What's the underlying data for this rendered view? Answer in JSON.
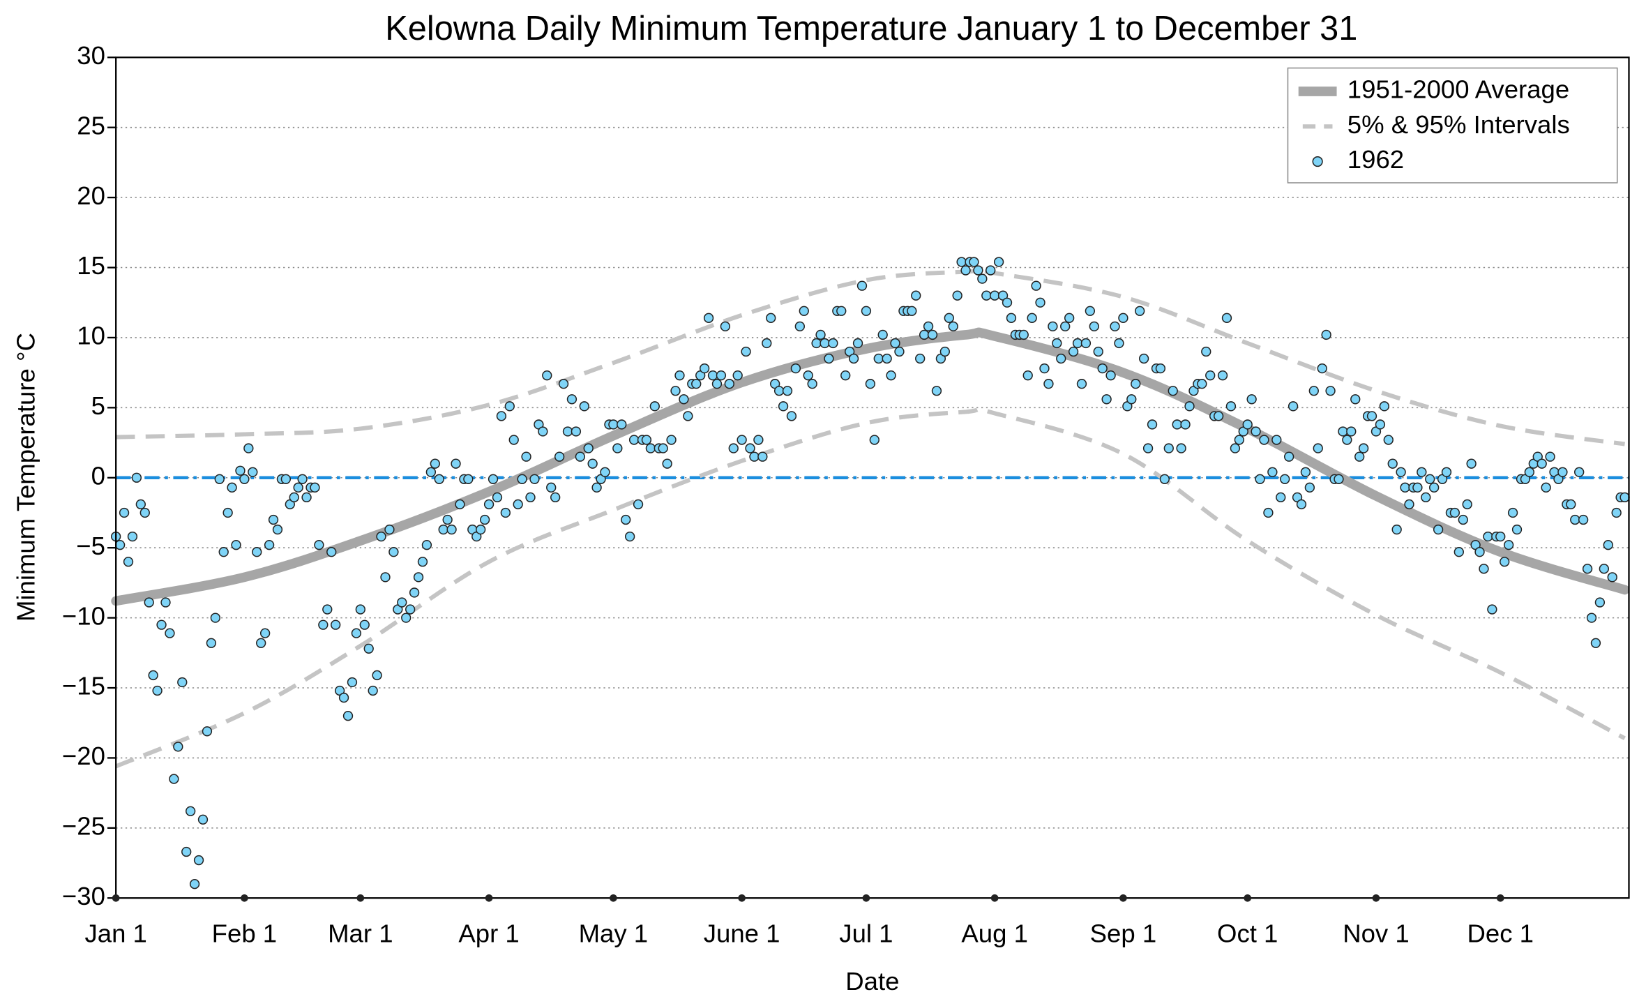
{
  "chart_data": {
    "type": "scatter",
    "title": "Kelowna Daily Minimum Temperature January 1 to December 31",
    "x_label": "Date",
    "y_label": "Minimum Temperature °C",
    "xlim": [
      0,
      365
    ],
    "ylim": [
      -30,
      30
    ],
    "xticks": [
      {
        "value": 0,
        "label": "Jan 1"
      },
      {
        "value": 31,
        "label": "Feb 1"
      },
      {
        "value": 59,
        "label": "Mar 1"
      },
      {
        "value": 90,
        "label": "Apr 1"
      },
      {
        "value": 120,
        "label": "May 1"
      },
      {
        "value": 151,
        "label": "June 1"
      },
      {
        "value": 181,
        "label": "Jul 1"
      },
      {
        "value": 212,
        "label": "Aug 1"
      },
      {
        "value": 243,
        "label": "Sep 1"
      },
      {
        "value": 273,
        "label": "Oct 1"
      },
      {
        "value": 304,
        "label": "Nov 1"
      },
      {
        "value": 334,
        "label": "Dec 1"
      }
    ],
    "yticks": [
      {
        "value": -30,
        "label": "−30"
      },
      {
        "value": -25,
        "label": "−25"
      },
      {
        "value": -20,
        "label": "−20"
      },
      {
        "value": -15,
        "label": "−15"
      },
      {
        "value": -10,
        "label": "−10"
      },
      {
        "value": -5,
        "label": "−5"
      },
      0,
      5,
      10,
      15,
      20,
      25,
      30
    ],
    "grid": true,
    "legend": "upper right",
    "reference_line": {
      "value": 0,
      "color": "#1b8ede"
    },
    "series": [
      {
        "name": "1951-2000 Average",
        "kind": "line",
        "color": "#a6a6a6",
        "x": [
          0,
          31,
          59,
          90,
          120,
          151,
          181,
          205,
          212,
          243,
          273,
          304,
          334,
          364
        ],
        "values": [
          -8.8,
          -7.1,
          -4.5,
          -1,
          3,
          6.8,
          9.2,
          10.2,
          10.1,
          7.5,
          3.5,
          -1.3,
          -5.3,
          -8
        ]
      },
      {
        "name": "5% & 95% Intervals",
        "kind": "band",
        "color": "#c4c4c4",
        "x": [
          0,
          31,
          59,
          90,
          120,
          151,
          181,
          205,
          212,
          243,
          273,
          304,
          334,
          364
        ],
        "values": [
          2.9,
          3.1,
          3.5,
          5.2,
          8.2,
          11.6,
          14.1,
          14.7,
          14.6,
          12.9,
          9.6,
          6.2,
          3.7,
          2.4
        ],
        "lower": [
          -20.6,
          -16.8,
          -12,
          -6,
          -2.3,
          1.2,
          3.9,
          4.7,
          4.6,
          1.7,
          -4.5,
          -9.8,
          -13.9,
          -18.6
        ]
      },
      {
        "name": "1962",
        "kind": "points",
        "color": "#7fd4f7",
        "x": [
          0,
          1,
          2,
          3,
          4,
          5,
          6,
          7,
          8,
          9,
          10,
          11,
          12,
          13,
          14,
          15,
          16,
          17,
          18,
          19,
          20,
          21,
          22,
          23,
          24,
          25,
          26,
          27,
          28,
          29,
          30,
          31,
          32,
          33,
          34,
          35,
          36,
          37,
          38,
          39,
          40,
          41,
          42,
          43,
          44,
          45,
          46,
          47,
          48,
          49,
          50,
          51,
          52,
          53,
          54,
          55,
          56,
          57,
          58,
          59,
          60,
          61,
          62,
          63,
          64,
          65,
          66,
          67,
          68,
          69,
          70,
          71,
          72,
          73,
          74,
          75,
          76,
          77,
          78,
          79,
          80,
          81,
          82,
          83,
          84,
          85,
          86,
          87,
          88,
          89,
          90,
          91,
          92,
          93,
          94,
          95,
          96,
          97,
          98,
          99,
          100,
          101,
          102,
          103,
          104,
          105,
          106,
          107,
          108,
          109,
          110,
          111,
          112,
          113,
          114,
          115,
          116,
          117,
          118,
          119,
          120,
          121,
          122,
          123,
          124,
          125,
          126,
          127,
          128,
          129,
          130,
          131,
          132,
          133,
          134,
          135,
          136,
          137,
          138,
          139,
          140,
          141,
          142,
          143,
          144,
          145,
          146,
          147,
          148,
          149,
          150,
          151,
          152,
          153,
          154,
          155,
          156,
          157,
          158,
          159,
          160,
          161,
          162,
          163,
          164,
          165,
          166,
          167,
          168,
          169,
          170,
          171,
          172,
          173,
          174,
          175,
          176,
          177,
          178,
          179,
          180,
          181,
          182,
          183,
          184,
          185,
          186,
          187,
          188,
          189,
          190,
          191,
          192,
          193,
          194,
          195,
          196,
          197,
          198,
          199,
          200,
          201,
          202,
          203,
          204,
          205,
          206,
          207,
          208,
          209,
          210,
          211,
          212,
          213,
          214,
          215,
          216,
          217,
          218,
          219,
          220,
          221,
          222,
          223,
          224,
          225,
          226,
          227,
          228,
          229,
          230,
          231,
          232,
          233,
          234,
          235,
          236,
          237,
          238,
          239,
          240,
          241,
          242,
          243,
          244,
          245,
          246,
          247,
          248,
          249,
          250,
          251,
          252,
          253,
          254,
          255,
          256,
          257,
          258,
          259,
          260,
          261,
          262,
          263,
          264,
          265,
          266,
          267,
          268,
          269,
          270,
          271,
          272,
          273,
          274,
          275,
          276,
          277,
          278,
          279,
          280,
          281,
          282,
          283,
          284,
          285,
          286,
          287,
          288,
          289,
          290,
          291,
          292,
          293,
          294,
          295,
          296,
          297,
          298,
          299,
          300,
          301,
          302,
          303,
          304,
          305,
          306,
          307,
          308,
          309,
          310,
          311,
          312,
          313,
          314,
          315,
          316,
          317,
          318,
          319,
          320,
          321,
          322,
          323,
          324,
          325,
          326,
          327,
          328,
          329,
          330,
          331,
          332,
          333,
          334,
          335,
          336,
          337,
          338,
          339,
          340,
          341,
          342,
          343,
          344,
          345,
          346,
          347,
          348,
          349,
          350,
          351,
          352,
          353,
          354,
          355,
          356,
          357,
          358,
          359,
          360,
          361,
          362,
          363,
          364
        ],
        "values": [
          -4.2,
          -4.8,
          -2.5,
          -6,
          -4.2,
          0,
          -1.9,
          -2.5,
          -8.9,
          -14.1,
          -15.2,
          -10.5,
          -8.9,
          -11.1,
          -21.5,
          -19.2,
          -14.6,
          -26.7,
          -23.8,
          -29,
          -27.3,
          -24.4,
          -18.1,
          -11.8,
          -10,
          -0.1,
          -5.3,
          -2.5,
          -0.7,
          -4.8,
          0.5,
          -0.1,
          2.1,
          0.4,
          -5.3,
          -11.8,
          -11.1,
          -4.8,
          -3,
          -3.7,
          -0.1,
          -0.1,
          -1.9,
          -1.4,
          -0.7,
          -0.1,
          -1.4,
          -0.7,
          -0.7,
          -4.8,
          -10.5,
          -9.4,
          -5.3,
          -10.5,
          -15.2,
          -15.7,
          -17,
          -14.6,
          -11.1,
          -9.4,
          -10.5,
          -12.2,
          -15.2,
          -14.1,
          -4.2,
          -7.1,
          -3.7,
          -5.3,
          -9.4,
          -8.9,
          -10,
          -9.4,
          -8.2,
          -7.1,
          -6,
          -4.8,
          0.4,
          1,
          -0.1,
          -3.7,
          -3,
          -3.7,
          1,
          -1.9,
          -0.1,
          -0.1,
          -3.7,
          -4.2,
          -3.7,
          -3,
          -1.9,
          -0.1,
          -1.4,
          4.4,
          -2.5,
          5.1,
          2.7,
          -1.9,
          -0.1,
          1.5,
          -1.4,
          -0.1,
          3.8,
          3.3,
          7.3,
          -0.7,
          -1.4,
          1.5,
          6.7,
          3.3,
          5.6,
          3.3,
          1.5,
          5.1,
          2.1,
          1,
          -0.7,
          -0.1,
          0.4,
          3.8,
          3.8,
          2.1,
          3.8,
          -3,
          -4.2,
          2.7,
          -1.9,
          2.7,
          2.7,
          2.1,
          5.1,
          2.1,
          2.1,
          1,
          2.7,
          6.2,
          7.3,
          5.6,
          4.4,
          6.7,
          6.7,
          7.3,
          7.8,
          11.4,
          7.3,
          6.7,
          7.3,
          10.8,
          6.7,
          2.1,
          7.3,
          2.7,
          9,
          2.1,
          1.5,
          2.7,
          1.5,
          9.6,
          11.4,
          6.7,
          6.2,
          5.1,
          6.2,
          4.4,
          7.8,
          10.8,
          11.9,
          7.3,
          6.7,
          9.6,
          10.2,
          9.6,
          8.5,
          9.6,
          11.9,
          11.9,
          7.3,
          9,
          8.5,
          9.6,
          13.7,
          11.9,
          6.7,
          2.7,
          8.5,
          10.2,
          8.5,
          7.3,
          9.6,
          9,
          11.9,
          11.9,
          11.9,
          13,
          8.5,
          10.2,
          10.8,
          10.2,
          6.2,
          8.5,
          9,
          11.4,
          10.8,
          13,
          15.4,
          14.8,
          15.4,
          15.4,
          14.8,
          14.2,
          13,
          14.8,
          13,
          15.4,
          13,
          12.5,
          11.4,
          10.2,
          10.2,
          10.2,
          7.3,
          11.4,
          13.7,
          12.5,
          7.8,
          6.7,
          10.8,
          9.6,
          8.5,
          10.8,
          11.4,
          9,
          9.6,
          6.7,
          9.6,
          11.9,
          10.8,
          9,
          7.8,
          5.6,
          7.3,
          10.8,
          9.6,
          11.4,
          5.1,
          5.6,
          6.7,
          11.9,
          8.5,
          2.1,
          3.8,
          7.8,
          7.8,
          -0.1,
          2.1,
          6.2,
          3.8,
          2.1,
          3.8,
          5.1,
          6.2,
          6.7,
          6.7,
          9,
          7.3,
          4.4,
          4.4,
          7.3,
          11.4,
          5.1,
          2.1,
          2.7,
          3.3,
          3.8,
          5.6,
          3.3,
          -0.1,
          2.7,
          -2.5,
          0.4,
          2.7,
          -1.4,
          -0.1,
          1.5,
          5.1,
          -1.4,
          -1.9,
          0.4,
          -0.7,
          6.2,
          2.1,
          7.8,
          10.2,
          6.2,
          -0.1,
          -0.1,
          3.3,
          2.7,
          3.3,
          5.6,
          1.5,
          2.1,
          4.4,
          4.4,
          3.3,
          3.8,
          5.1,
          2.7,
          1,
          -3.7,
          0.4,
          -0.7,
          -1.9,
          -0.7,
          -0.7,
          0.4,
          -1.4,
          -0.1,
          -0.7,
          -3.7,
          -0.1,
          0.4,
          -2.5,
          -2.5,
          -5.3,
          -3,
          -1.9,
          1,
          -4.8,
          -5.3,
          -6.5,
          -4.2,
          -9.4,
          -4.2,
          -4.2,
          -6,
          -4.8,
          -2.5,
          -3.7,
          -0.1,
          -0.1,
          0.4,
          1,
          1.5,
          1,
          -0.7,
          1.5,
          0.4,
          -0.1,
          0.4,
          -1.9,
          -1.9,
          -3,
          0.4,
          -3,
          -6.5,
          -10,
          -11.8,
          -8.9,
          -6.5,
          -4.8,
          -7.1,
          -2.5,
          -1.4,
          -1.4
        ]
      }
    ]
  }
}
